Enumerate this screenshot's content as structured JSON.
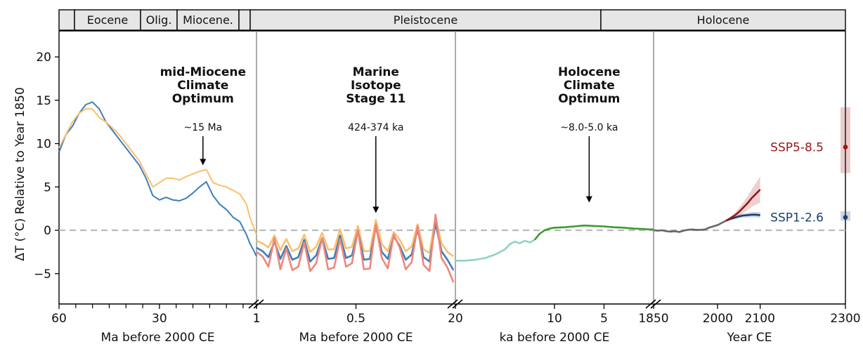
{
  "chart_data": {
    "type": "line",
    "title": "",
    "ylabel": "ΔT (°C) Relative to Year 1850",
    "ylim": [
      -8.5,
      23
    ],
    "yticks": [
      -5,
      0,
      5,
      10,
      15,
      20
    ],
    "zero_line": {
      "value": 0,
      "style": "dashed",
      "color": "#bbbbbb"
    },
    "eras": [
      "",
      "Eocene",
      "Olig.",
      "Miocene.",
      "",
      "",
      "Pleistocene",
      "Holocene"
    ],
    "panels": [
      {
        "xlabel": "Ma before 2000 CE",
        "xlim": [
          60,
          1
        ],
        "xtick_labels": [
          "60",
          "30",
          "1"
        ],
        "annotation": {
          "lines": [
            "mid-Miocene",
            "Climate",
            "Optimum"
          ],
          "label": "~15 Ma",
          "x": 17,
          "y": 7.5
        },
        "series": [
          {
            "color": "#3b7fbd",
            "x": [
              60,
              58,
              56,
              54,
              52,
              50,
              48,
              46,
              44,
              42,
              40,
              38,
              36,
              34,
              32,
              30,
              28,
              26,
              24,
              22,
              20,
              18,
              16,
              14,
              12,
              10,
              8,
              6,
              4,
              3,
              2,
              1
            ],
            "y": [
              9,
              11,
              12,
              13.5,
              14.5,
              14.8,
              14,
              12.5,
              11.5,
              10.5,
              9.5,
              8.5,
              7.5,
              6,
              4,
              3.5,
              3.8,
              3.5,
              3.4,
              3.7,
              4.3,
              5,
              5.6,
              4,
              3,
              2.4,
              1.5,
              1,
              -0.5,
              -1.5,
              -2.2,
              -3
            ]
          },
          {
            "color": "#fbbf6b",
            "x": [
              60,
              58,
              56,
              54,
              52,
              50,
              48,
              46,
              44,
              42,
              40,
              38,
              36,
              34,
              32,
              30,
              28,
              26,
              24,
              22,
              20,
              18,
              16,
              14,
              12,
              10,
              8,
              6,
              4,
              3,
              2,
              1
            ],
            "y": [
              9.5,
              11,
              12.5,
              13.5,
              14,
              14,
              13,
              12.5,
              11.8,
              11,
              10,
              9,
              8,
              6.5,
              5,
              5.5,
              6,
              6,
              5.8,
              6.2,
              6.5,
              6.8,
              7,
              5.5,
              5.2,
              5,
              4.6,
              4.2,
              3,
              1.5,
              0.5,
              -0.5
            ]
          }
        ]
      },
      {
        "xlabel": "Ma before 2000 CE",
        "xlim": [
          1,
          0
        ],
        "xtick_labels": [
          "1",
          "0.5"
        ],
        "annotation": {
          "lines": [
            "Marine",
            "Isotope",
            "Stage 11"
          ],
          "label": "424-374 ka",
          "x": 0.4,
          "y": 2
        },
        "series": [
          {
            "color": "#fbbf6b",
            "x": [
              1.0,
              0.97,
              0.94,
              0.91,
              0.88,
              0.85,
              0.82,
              0.79,
              0.76,
              0.73,
              0.7,
              0.67,
              0.64,
              0.61,
              0.58,
              0.55,
              0.52,
              0.49,
              0.46,
              0.43,
              0.4,
              0.37,
              0.34,
              0.31,
              0.28,
              0.25,
              0.22,
              0.19,
              0.16,
              0.13,
              0.1,
              0.07,
              0.04,
              0.01
            ],
            "y": [
              -1.2,
              -1.5,
              -2,
              -0.6,
              -2.3,
              -1,
              -2.4,
              -2.1,
              -0.5,
              -2.5,
              -1.9,
              -0.3,
              -2.2,
              -2.2,
              0.1,
              -2.1,
              -1.9,
              0.5,
              -2.4,
              -2.4,
              1.2,
              -1.6,
              -2.4,
              -0.2,
              -1.1,
              -2.4,
              -1.9,
              0.7,
              -2.2,
              -2.6,
              1.5,
              -1.5,
              -2.5,
              -3
            ]
          },
          {
            "color": "#3b7fbd",
            "x": [
              1.0,
              0.97,
              0.94,
              0.91,
              0.88,
              0.85,
              0.82,
              0.79,
              0.76,
              0.73,
              0.7,
              0.67,
              0.64,
              0.61,
              0.58,
              0.55,
              0.52,
              0.49,
              0.46,
              0.43,
              0.4,
              0.37,
              0.34,
              0.31,
              0.28,
              0.25,
              0.22,
              0.19,
              0.16,
              0.13,
              0.1,
              0.07,
              0.04,
              0.01
            ],
            "y": [
              -2,
              -2.4,
              -3.1,
              -1.3,
              -3.3,
              -1.8,
              -3.4,
              -3.1,
              -1.1,
              -3.6,
              -2.9,
              -0.9,
              -3.3,
              -3.2,
              -0.6,
              -3.2,
              -2.9,
              -0.1,
              -3.4,
              -3.3,
              0.4,
              -2.5,
              -3.3,
              -0.7,
              -1.8,
              -3.4,
              -2.8,
              0.1,
              -3.1,
              -3.6,
              0.8,
              -2.4,
              -3.4,
              -4.6
            ]
          },
          {
            "color": "#f0867a",
            "x": [
              1.0,
              0.97,
              0.94,
              0.91,
              0.88,
              0.85,
              0.82,
              0.79,
              0.76,
              0.73,
              0.7,
              0.67,
              0.64,
              0.61,
              0.58,
              0.55,
              0.52,
              0.49,
              0.46,
              0.43,
              0.4,
              0.37,
              0.34,
              0.31,
              0.28,
              0.25,
              0.22,
              0.19,
              0.16,
              0.13,
              0.1,
              0.07,
              0.04,
              0.01
            ],
            "y": [
              -2.5,
              -3,
              -4.2,
              -0.9,
              -4.5,
              -2.1,
              -4.6,
              -4.2,
              -1.4,
              -4.7,
              -3.8,
              -0.9,
              -4.5,
              -4.3,
              -1,
              -4.2,
              -3.8,
              0,
              -4.5,
              -4.4,
              0.7,
              -3.2,
              -4.4,
              -0.5,
              -2,
              -4.5,
              -3.7,
              0.5,
              -4,
              -4.7,
              1.8,
              -3.2,
              -4.3,
              -6
            ]
          }
        ]
      },
      {
        "xlabel": "ka before 2000 CE",
        "xlim": [
          20,
          0
        ],
        "xtick_labels": [
          "20",
          "10",
          "5"
        ],
        "annotation": {
          "lines": [
            "Holocene",
            "Climate",
            "Optimum"
          ],
          "label": "~8.0-5.0 ka",
          "x": 6.5,
          "y": 3.2
        },
        "series": [
          {
            "color": "#8fd3c5",
            "x": [
              20,
              19,
              18,
              17,
              16,
              15,
              14.5,
              14,
              13.5,
              13,
              12.5,
              12
            ],
            "y": [
              -3.5,
              -3.5,
              -3.4,
              -3.2,
              -2.8,
              -2.2,
              -1.6,
              -1.3,
              -1.5,
              -1.2,
              -1.4,
              -1.1
            ]
          },
          {
            "color": "#3c9a30",
            "x": [
              12,
              11.5,
              11,
              10.5,
              10,
              9,
              8,
              7,
              6,
              5,
              4,
              3,
              2,
              1,
              0.5,
              0
            ],
            "y": [
              -1.1,
              -0.4,
              0,
              0.2,
              0.3,
              0.35,
              0.45,
              0.55,
              0.5,
              0.45,
              0.35,
              0.3,
              0.2,
              0.15,
              0.1,
              0.1
            ]
          }
        ]
      },
      {
        "xlabel": "Year CE",
        "xlim": [
          1850,
          2300
        ],
        "xtick_labels": [
          "1850",
          "2000",
          "2100",
          "2300"
        ],
        "series": [
          {
            "color": "#666666",
            "x": [
              1850,
              1860,
              1870,
              1880,
              1890,
              1900,
              1910,
              1920,
              1930,
              1940,
              1950,
              1960,
              1970,
              1980,
              1990,
              2000,
              2010,
              2020
            ],
            "y": [
              0,
              -0.05,
              0,
              -0.1,
              -0.15,
              -0.1,
              -0.2,
              -0.05,
              0.05,
              0.1,
              0.05,
              0.05,
              0.1,
              0.3,
              0.45,
              0.6,
              0.85,
              1.1
            ]
          },
          {
            "name": "SSP1-2.6",
            "color": "#1b3f6e",
            "x": [
              2020,
              2030,
              2040,
              2050,
              2060,
              2070,
              2080,
              2090,
              2100
            ],
            "y": [
              1.1,
              1.3,
              1.45,
              1.6,
              1.7,
              1.75,
              1.8,
              1.8,
              1.75
            ]
          },
          {
            "name": "SSP5-8.5",
            "color": "#9b1717",
            "x": [
              2020,
              2030,
              2040,
              2050,
              2060,
              2070,
              2080,
              2090,
              2100
            ],
            "y": [
              1.1,
              1.4,
              1.7,
              2.1,
              2.6,
              3.1,
              3.7,
              4.2,
              4.7
            ]
          }
        ],
        "ranges_2300": [
          {
            "name": "SSP5-8.5",
            "color": "#9b1717",
            "median": 9.6,
            "low": 6.6,
            "high": 14.2
          },
          {
            "name": "SSP1-2.6",
            "color": "#1b3f6e",
            "median": 1.5,
            "low": 1.1,
            "high": 2.2
          }
        ]
      }
    ]
  }
}
